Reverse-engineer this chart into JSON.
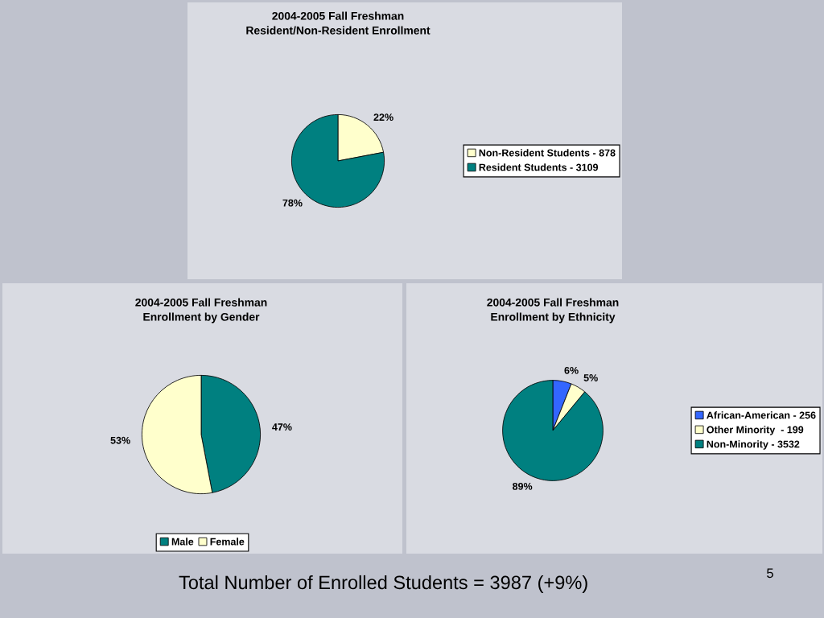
{
  "chart_data": [
    {
      "type": "pie",
      "title": "2004-2005 Fall Freshman\nResident/Non-Resident Enrollment",
      "categories": [
        "Non-Resident Students - 878",
        "Resident Students - 3109"
      ],
      "values": [
        22,
        78
      ],
      "colors": [
        "#ffffcc",
        "#008080"
      ],
      "value_labels": [
        "22%",
        "78%"
      ],
      "legend": "right"
    },
    {
      "type": "pie",
      "title": "2004-2005 Fall Freshman\nEnrollment by Gender",
      "categories": [
        "Male",
        "Female"
      ],
      "values": [
        47,
        53
      ],
      "colors": [
        "#008080",
        "#ffffcc"
      ],
      "value_labels": [
        "47%",
        "53%"
      ],
      "legend": "bottom"
    },
    {
      "type": "pie",
      "title": "2004-2005 Fall Freshman\nEnrollment by Ethnicity",
      "categories": [
        "African-American - 256",
        "Other Minority  - 199",
        "Non-Minority - 3532"
      ],
      "values": [
        6,
        5,
        89
      ],
      "colors": [
        "#3366ff",
        "#ffffcc",
        "#008080"
      ],
      "value_labels": [
        "6%",
        "5%",
        "89%"
      ],
      "legend": "right"
    },
    {
      "type": "other",
      "annotations": [
        "Total Number of Enrolled Students = 3987 (+9%)",
        "5"
      ]
    }
  ]
}
